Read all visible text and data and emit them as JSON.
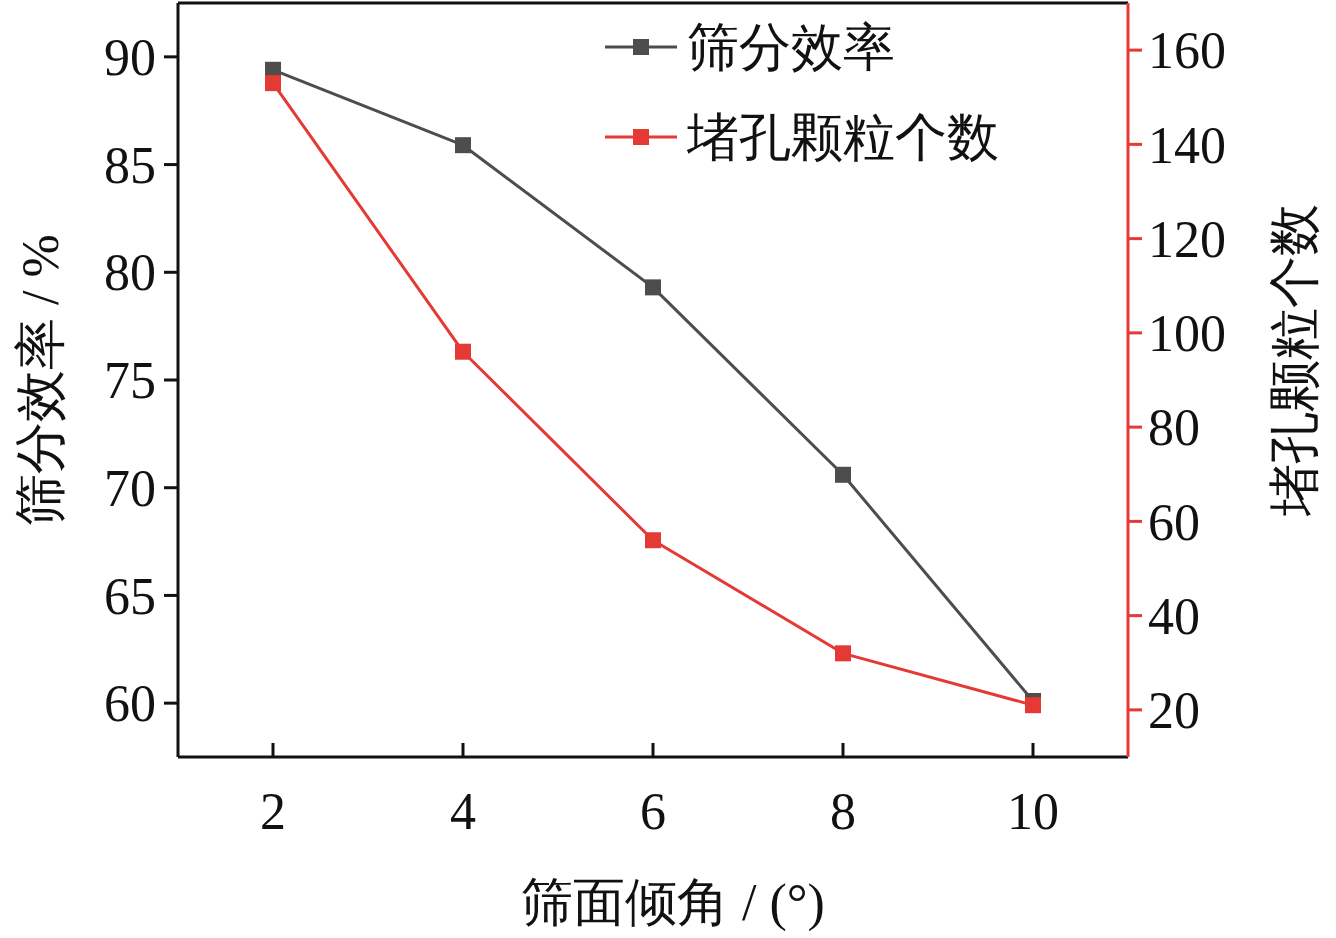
{
  "chart_data": {
    "type": "line",
    "xlabel": "筛面倾角 / (°)",
    "ylabel": "筛分效率 / %",
    "y2label": "堵孔颗粒个数",
    "x": [
      2,
      4,
      6,
      8,
      10
    ],
    "series": [
      {
        "name": "筛分效率",
        "color": "#4d4d4d",
        "values": [
          89.4,
          85.9,
          79.3,
          70.6,
          60.1
        ]
      },
      {
        "name": "堵孔颗粒个数",
        "color": "#e53935",
        "axis": "y2",
        "values": [
          153,
          96,
          56,
          32,
          21
        ]
      }
    ],
    "xlim": [
      1,
      11
    ],
    "xticks": [
      2,
      4,
      6,
      8,
      10
    ],
    "ylim": [
      57.5,
      92.5
    ],
    "yticks": [
      60,
      65,
      70,
      75,
      80,
      85,
      90
    ],
    "y2lim": [
      10,
      170
    ],
    "y2ticks": [
      20,
      40,
      60,
      80,
      100,
      120,
      140,
      160
    ],
    "marker": "square",
    "legend": "top right",
    "grid": false
  }
}
